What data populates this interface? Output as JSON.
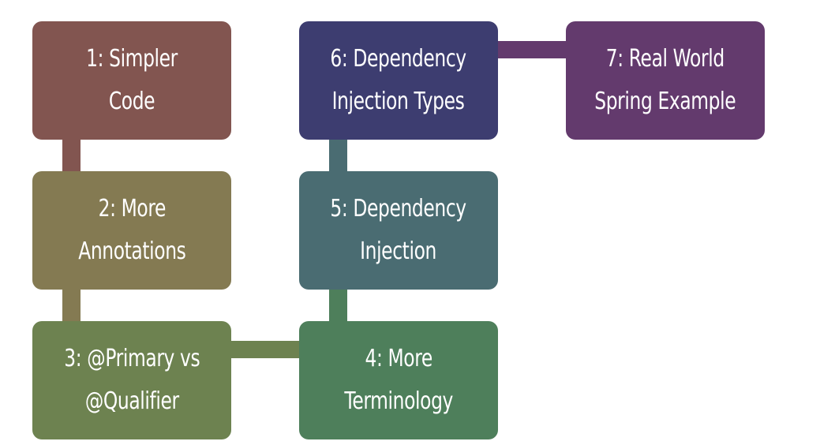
{
  "diagram": {
    "nodes": [
      {
        "id": "n1",
        "label": "1: Simpler Code",
        "color": "#825550"
      },
      {
        "id": "n2",
        "label": "2: More\nAnnotations",
        "color": "#847a52"
      },
      {
        "id": "n3",
        "label": "3: @Primary vs\n@Qualifier",
        "color": "#6d8250"
      },
      {
        "id": "n4",
        "label": "4: More\nTerminology",
        "color": "#4e7f5b"
      },
      {
        "id": "n5",
        "label": "5: Dependency\nInjection",
        "color": "#4a6c72"
      },
      {
        "id": "n6",
        "label": "6: Dependency\nInjection Types",
        "color": "#3d3d70"
      },
      {
        "id": "n7",
        "label": "7: Real World\nSpring Example",
        "color": "#633a6d"
      }
    ],
    "edges": [
      {
        "from": "n1",
        "to": "n2",
        "color": "#825550"
      },
      {
        "from": "n2",
        "to": "n3",
        "color": "#847a52"
      },
      {
        "from": "n3",
        "to": "n4",
        "color": "#6d8250"
      },
      {
        "from": "n4",
        "to": "n5",
        "color": "#4e7f5b"
      },
      {
        "from": "n5",
        "to": "n6",
        "color": "#4a6c72"
      },
      {
        "from": "n6",
        "to": "n7",
        "color": "#633a6d"
      }
    ]
  }
}
